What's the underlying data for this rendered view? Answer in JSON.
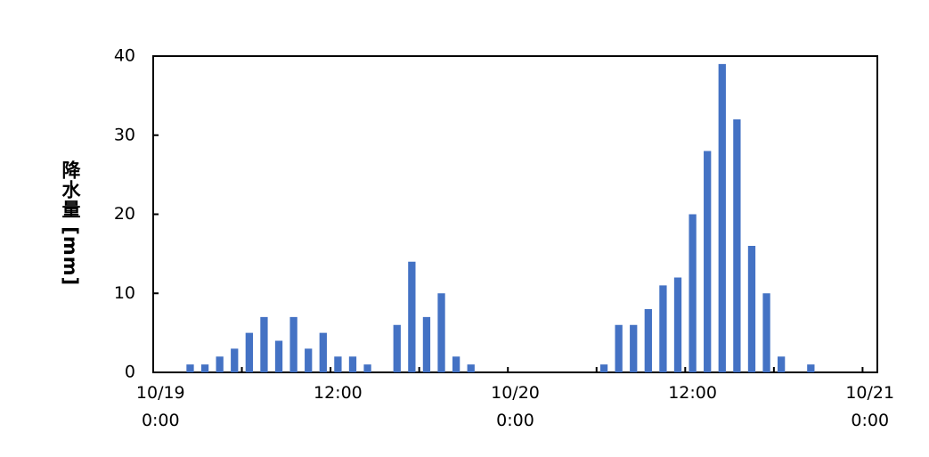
{
  "chart_data": {
    "type": "bar",
    "y_label": "降水量 [mm]",
    "categories": [
      "10/19\n0:00",
      null,
      null,
      null,
      null,
      null,
      null,
      null,
      null,
      null,
      null,
      null,
      "12:00",
      null,
      null,
      null,
      null,
      null,
      null,
      null,
      null,
      null,
      null,
      null,
      "10/20\n0:00",
      null,
      null,
      null,
      null,
      null,
      null,
      null,
      null,
      null,
      null,
      null,
      "12:00",
      null,
      null,
      null,
      null,
      null,
      null,
      null,
      null,
      null,
      null,
      null,
      "10/21\n0:00"
    ],
    "values": [
      0,
      0,
      1,
      1,
      2,
      3,
      5,
      7,
      4,
      7,
      3,
      5,
      2,
      2,
      1,
      0,
      6,
      14,
      7,
      10,
      2,
      1,
      0,
      0,
      0,
      0,
      0,
      0,
      0,
      0,
      1,
      6,
      6,
      8,
      11,
      12,
      20,
      28,
      39,
      32,
      16,
      10,
      2,
      0,
      1,
      0,
      0,
      0,
      0
    ],
    "color": "#4472c4",
    "ylim": [
      0,
      40
    ],
    "yticks": [
      0,
      10,
      20,
      30,
      40
    ],
    "grid": false
  }
}
